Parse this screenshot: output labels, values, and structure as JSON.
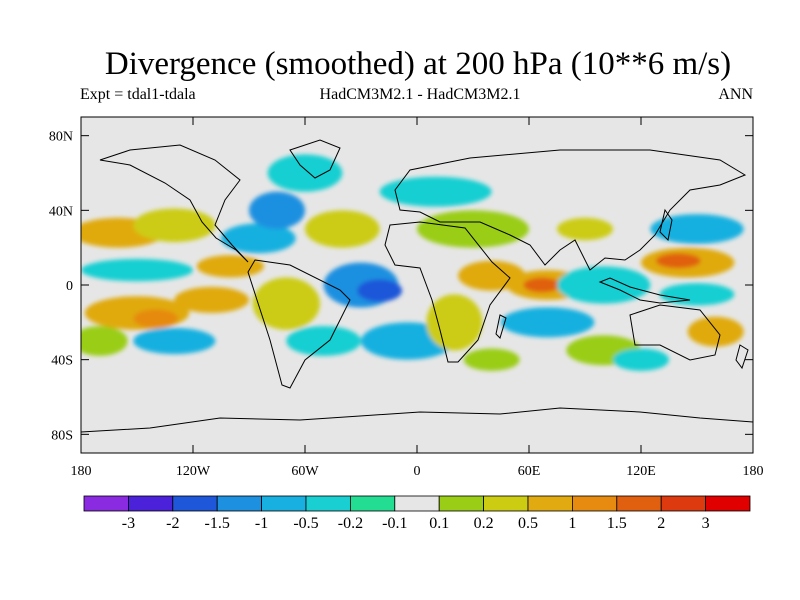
{
  "header": {
    "title": "Divergence (smoothed) at 200 hPa (10**6 m/s)",
    "expt": "Expt = tdal1-tdala",
    "models": "HadCM3M2.1 - HadCM3M2.1",
    "season": "ANN"
  },
  "axes": {
    "lat_ticks": [
      {
        "lat": 80,
        "label": "80N"
      },
      {
        "lat": 40,
        "label": "40N"
      },
      {
        "lat": 0,
        "label": "0"
      },
      {
        "lat": -40,
        "label": "40S"
      },
      {
        "lat": -80,
        "label": "80S"
      }
    ],
    "lon_ticks": [
      {
        "lon": -180,
        "label": "180"
      },
      {
        "lon": -120,
        "label": "120W"
      },
      {
        "lon": -60,
        "label": "60W"
      },
      {
        "lon": 0,
        "label": "0"
      },
      {
        "lon": 60,
        "label": "60E"
      },
      {
        "lon": 120,
        "label": "120E"
      },
      {
        "lon": 180,
        "label": "180"
      }
    ]
  },
  "colorbar": {
    "colors": [
      "#8a2be2",
      "#4b22d9",
      "#1e57d9",
      "#1e90e0",
      "#18b0e0",
      "#19cfd2",
      "#22dd92",
      "#e6e6e6",
      "#9acd16",
      "#cccc12",
      "#e0aa10",
      "#e68a10",
      "#e06010",
      "#de3a10",
      "#e00000"
    ],
    "labels": [
      "-3",
      "-2",
      "-1.5",
      "-1",
      "-0.5",
      "-0.2",
      "-0.1",
      "0.1",
      "0.2",
      "0.5",
      "1",
      "1.5",
      "2",
      "3"
    ]
  },
  "map": {
    "background_color": "#e6e6e6",
    "fields": [
      {
        "lon": -160,
        "lat": 28,
        "rx": 25,
        "ry": 8,
        "color": "#e0aa10"
      },
      {
        "lon": -130,
        "lat": 32,
        "rx": 22,
        "ry": 9,
        "color": "#cccc12"
      },
      {
        "lon": -150,
        "lat": 8,
        "rx": 30,
        "ry": 6,
        "color": "#19cfd2"
      },
      {
        "lon": -150,
        "lat": -15,
        "rx": 28,
        "ry": 9,
        "color": "#e0aa10"
      },
      {
        "lon": -140,
        "lat": -18,
        "rx": 12,
        "ry": 5,
        "color": "#e68a10"
      },
      {
        "lon": -170,
        "lat": -30,
        "rx": 15,
        "ry": 8,
        "color": "#9acd16"
      },
      {
        "lon": -110,
        "lat": -8,
        "rx": 20,
        "ry": 7,
        "color": "#e0aa10"
      },
      {
        "lon": -130,
        "lat": -30,
        "rx": 22,
        "ry": 7,
        "color": "#18b0e0"
      },
      {
        "lon": -100,
        "lat": 10,
        "rx": 18,
        "ry": 6,
        "color": "#e0aa10"
      },
      {
        "lon": -85,
        "lat": 25,
        "rx": 20,
        "ry": 8,
        "color": "#18b0e0"
      },
      {
        "lon": -75,
        "lat": 40,
        "rx": 15,
        "ry": 10,
        "color": "#1e90e0"
      },
      {
        "lon": -60,
        "lat": 60,
        "rx": 20,
        "ry": 10,
        "color": "#19cfd2"
      },
      {
        "lon": -40,
        "lat": 30,
        "rx": 20,
        "ry": 10,
        "color": "#cccc12"
      },
      {
        "lon": -30,
        "lat": 0,
        "rx": 20,
        "ry": 12,
        "color": "#1e90e0"
      },
      {
        "lon": -20,
        "lat": -3,
        "rx": 12,
        "ry": 6,
        "color": "#1e57d9"
      },
      {
        "lon": -70,
        "lat": -10,
        "rx": 18,
        "ry": 14,
        "color": "#cccc12"
      },
      {
        "lon": -50,
        "lat": -30,
        "rx": 20,
        "ry": 8,
        "color": "#19cfd2"
      },
      {
        "lon": -5,
        "lat": -30,
        "rx": 25,
        "ry": 10,
        "color": "#18b0e0"
      },
      {
        "lon": 20,
        "lat": -20,
        "rx": 15,
        "ry": 15,
        "color": "#cccc12"
      },
      {
        "lon": 40,
        "lat": 5,
        "rx": 18,
        "ry": 8,
        "color": "#e0aa10"
      },
      {
        "lon": 30,
        "lat": 30,
        "rx": 30,
        "ry": 10,
        "color": "#9acd16"
      },
      {
        "lon": 10,
        "lat": 50,
        "rx": 30,
        "ry": 8,
        "color": "#19cfd2"
      },
      {
        "lon": 70,
        "lat": 0,
        "rx": 22,
        "ry": 8,
        "color": "#e0aa10"
      },
      {
        "lon": 67,
        "lat": 0,
        "rx": 10,
        "ry": 4,
        "color": "#e06010"
      },
      {
        "lon": 70,
        "lat": -20,
        "rx": 25,
        "ry": 8,
        "color": "#18b0e0"
      },
      {
        "lon": 100,
        "lat": 0,
        "rx": 25,
        "ry": 10,
        "color": "#19cfd2"
      },
      {
        "lon": 150,
        "lat": 30,
        "rx": 25,
        "ry": 8,
        "color": "#18b0e0"
      },
      {
        "lon": 145,
        "lat": 12,
        "rx": 25,
        "ry": 8,
        "color": "#e0aa10"
      },
      {
        "lon": 140,
        "lat": 13,
        "rx": 12,
        "ry": 4,
        "color": "#e06010"
      },
      {
        "lon": 150,
        "lat": -5,
        "rx": 20,
        "ry": 6,
        "color": "#19cfd2"
      },
      {
        "lon": 160,
        "lat": -25,
        "rx": 15,
        "ry": 8,
        "color": "#e0aa10"
      },
      {
        "lon": 100,
        "lat": -35,
        "rx": 20,
        "ry": 8,
        "color": "#9acd16"
      },
      {
        "lon": 120,
        "lat": -40,
        "rx": 15,
        "ry": 6,
        "color": "#19cfd2"
      },
      {
        "lon": 90,
        "lat": 30,
        "rx": 15,
        "ry": 6,
        "color": "#cccc12"
      },
      {
        "lon": 40,
        "lat": -40,
        "rx": 15,
        "ry": 6,
        "color": "#9acd16"
      }
    ]
  }
}
